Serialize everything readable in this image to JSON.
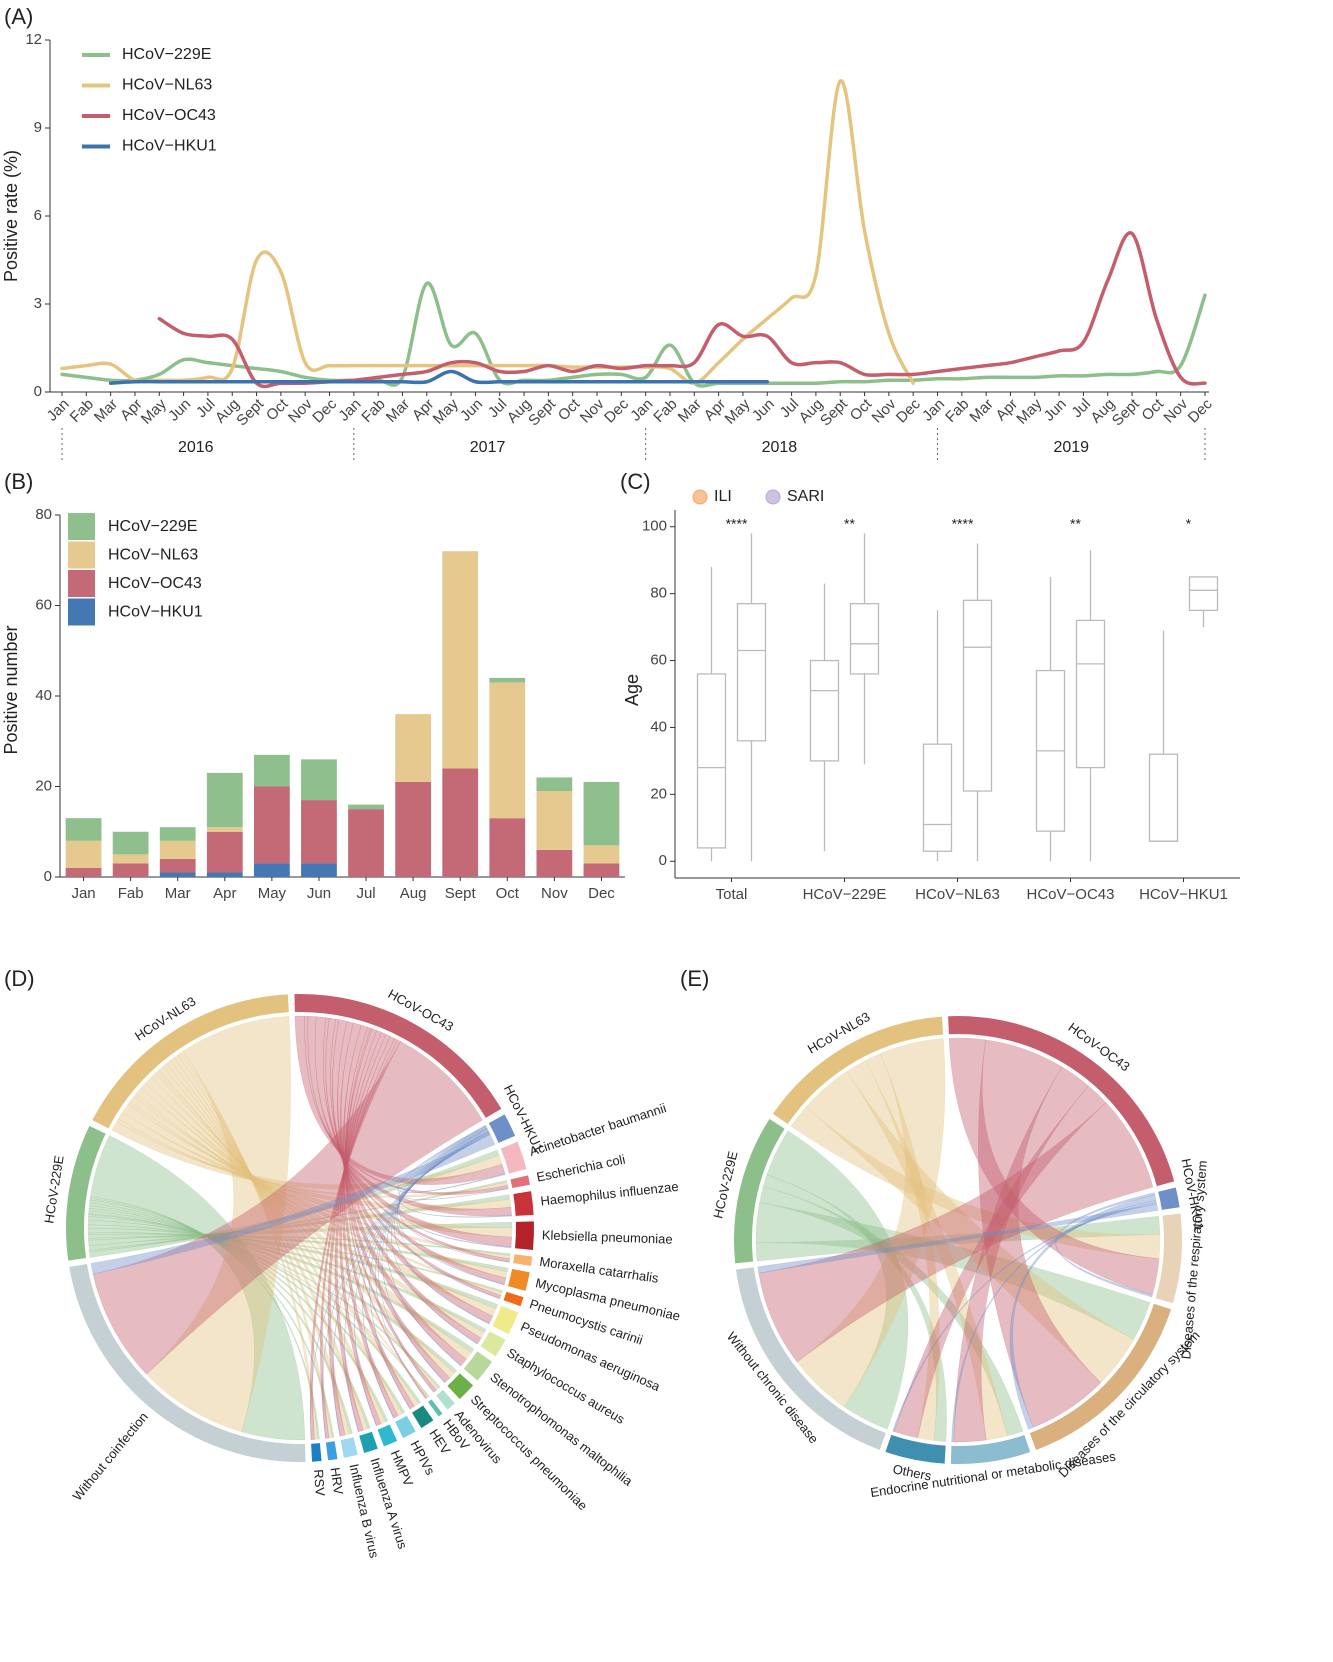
{
  "chart_data": [
    {
      "type": "line",
      "panel_label": "(A)",
      "ylabel": "Positive rate (%)",
      "categories": [
        "Jan",
        "Fab",
        "Mar",
        "Apr",
        "May",
        "Jun",
        "Jul",
        "Aug",
        "Sept",
        "Oct",
        "Nov",
        "Dec",
        "Jan",
        "Fab",
        "Mar",
        "Apr",
        "May",
        "Jun",
        "Jul",
        "Aug",
        "Sept",
        "Oct",
        "Nov",
        "Dec",
        "Jan",
        "Fab",
        "Mar",
        "Apr",
        "May",
        "Jun",
        "Jul",
        "Aug",
        "Sept",
        "Oct",
        "Nov",
        "Dec",
        "Jan",
        "Fab",
        "Mar",
        "Apr",
        "May",
        "Jun",
        "Jul",
        "Aug",
        "Sept",
        "Oct",
        "Nov",
        "Dec"
      ],
      "year_labels": [
        "2016",
        "2017",
        "2018",
        "2019"
      ],
      "ylim": [
        0,
        12
      ],
      "yticks": [
        0,
        3,
        6,
        9,
        12
      ],
      "series": [
        {
          "name": "HCoV−229E",
          "color": "#8dbf8b",
          "values": [
            0.6,
            0.5,
            0.4,
            0.4,
            0.6,
            1.1,
            1.0,
            0.9,
            0.8,
            0.7,
            0.5,
            0.4,
            0.4,
            0.4,
            0.5,
            3.7,
            1.6,
            2.0,
            0.4,
            0.4,
            0.4,
            0.5,
            0.6,
            0.6,
            0.5,
            1.6,
            0.3,
            0.3,
            0.3,
            0.3,
            0.3,
            0.3,
            0.35,
            0.35,
            0.4,
            0.4,
            0.45,
            0.45,
            0.5,
            0.5,
            0.5,
            0.55,
            0.55,
            0.6,
            0.6,
            0.7,
            0.9,
            3.3
          ]
        },
        {
          "name": "HCoV−NL63",
          "color": "#e5c47f",
          "values": [
            0.8,
            0.9,
            0.95,
            0.4,
            0.4,
            0.4,
            0.5,
            0.8,
            4.5,
            4.1,
            1.0,
            0.9,
            0.9,
            0.9,
            0.9,
            0.9,
            0.9,
            0.9,
            0.9,
            0.9,
            0.9,
            0.85,
            0.85,
            0.85,
            0.85,
            0.8,
            0.3,
            1.0,
            1.8,
            2.5,
            3.2,
            4.0,
            10.6,
            5.5,
            2.0,
            0.3,
            null,
            null,
            null,
            null,
            null,
            null,
            null,
            null,
            null,
            null,
            null,
            null
          ]
        },
        {
          "name": "HCoV−OC43",
          "color": "#c45d6c",
          "values": [
            null,
            null,
            null,
            null,
            2.5,
            2.0,
            1.9,
            1.8,
            0.3,
            0.3,
            0.3,
            0.35,
            0.4,
            0.5,
            0.6,
            0.7,
            1.0,
            1.0,
            0.7,
            0.7,
            0.9,
            0.7,
            0.9,
            0.8,
            0.9,
            0.9,
            1.0,
            2.3,
            1.9,
            1.9,
            1.0,
            1.0,
            1.0,
            0.6,
            0.6,
            0.6,
            0.7,
            0.8,
            0.9,
            1.0,
            1.2,
            1.4,
            1.7,
            3.8,
            5.4,
            2.5,
            0.5,
            0.3
          ]
        },
        {
          "name": "HCoV−HKU1",
          "color": "#3b72b0",
          "values": [
            null,
            null,
            0.3,
            0.35,
            0.35,
            0.35,
            0.35,
            0.35,
            0.35,
            0.35,
            0.35,
            0.35,
            0.35,
            0.35,
            0.35,
            0.35,
            0.7,
            0.35,
            0.35,
            0.35,
            0.35,
            0.35,
            0.35,
            0.35,
            0.35,
            0.35,
            0.35,
            0.35,
            0.35,
            0.35,
            null,
            null,
            null,
            null,
            null,
            null,
            null,
            null,
            null,
            null,
            null,
            null,
            null,
            null,
            null,
            null,
            null,
            null
          ]
        }
      ]
    },
    {
      "type": "stacked_bar",
      "panel_label": "(B)",
      "ylabel": "Positive number",
      "categories": [
        "Jan",
        "Fab",
        "Mar",
        "Apr",
        "May",
        "Jun",
        "Jul",
        "Aug",
        "Sept",
        "Oct",
        "Nov",
        "Dec"
      ],
      "ylim": [
        0,
        80
      ],
      "yticks": [
        0,
        20,
        40,
        60,
        80
      ],
      "series": [
        {
          "name": "HCoV−229E",
          "color": "#8fbf8d",
          "values": [
            5,
            5,
            3,
            12,
            7,
            9,
            1,
            0,
            0,
            1,
            3,
            14
          ]
        },
        {
          "name": "HCoV−NL63",
          "color": "#e5c98e",
          "values": [
            6,
            2,
            4,
            1,
            0,
            0,
            0,
            15,
            48,
            30,
            13,
            4
          ]
        },
        {
          "name": "HCoV−OC43",
          "color": "#c46a76",
          "values": [
            2,
            3,
            3,
            9,
            17,
            14,
            15,
            21,
            24,
            13,
            6,
            3
          ]
        },
        {
          "name": "HCoV−HKU1",
          "color": "#4478b4",
          "values": [
            0,
            0,
            1,
            1,
            3,
            3,
            0,
            0,
            0,
            0,
            0,
            0
          ]
        }
      ]
    },
    {
      "type": "box",
      "panel_label": "(C)",
      "ylabel": "Age",
      "categories": [
        "Total",
        "HCoV−229E",
        "HCoV−NL63",
        "HCoV−OC43",
        "HCoV−HKU1"
      ],
      "annotations": [
        "****",
        "**",
        "****",
        "**",
        "*"
      ],
      "ylim": [
        -5,
        105
      ],
      "yticks": [
        0,
        20,
        40,
        60,
        80,
        100
      ],
      "series": [
        {
          "name": "ILI",
          "color": "#f5a866",
          "boxes": [
            {
              "low": 0,
              "q1": 4,
              "median": 28,
              "q3": 56,
              "high": 88
            },
            {
              "low": 3,
              "q1": 30,
              "median": 51,
              "q3": 60,
              "high": 83
            },
            {
              "low": 0,
              "q1": 3,
              "median": 11,
              "q3": 35,
              "high": 75
            },
            {
              "low": 0,
              "q1": 9,
              "median": 33,
              "q3": 57,
              "high": 85
            },
            {
              "low": 6,
              "q1": 6,
              "median": 6,
              "q3": 32,
              "high": 69
            }
          ]
        },
        {
          "name": "SARI",
          "color": "#b9a6d6",
          "boxes": [
            {
              "low": 0,
              "q1": 36,
              "median": 63,
              "q3": 77,
              "high": 98
            },
            {
              "low": 29,
              "q1": 56,
              "median": 65,
              "q3": 77,
              "high": 98
            },
            {
              "low": 0,
              "q1": 21,
              "median": 64,
              "q3": 78,
              "high": 95
            },
            {
              "low": 0,
              "q1": 28,
              "median": 59,
              "q3": 72,
              "high": 93
            },
            {
              "low": 70,
              "q1": 75,
              "median": 81,
              "q3": 85,
              "high": 85
            }
          ]
        }
      ]
    },
    {
      "type": "chord",
      "panel_label": "(D)",
      "target_labels": "radial",
      "sources": [
        {
          "name": "HCoV-229E",
          "color": "#8dbf8b",
          "value": 29
        },
        {
          "name": "HCoV-NL63",
          "color": "#e2c27e",
          "value": 51
        },
        {
          "name": "HCoV-OC43",
          "color": "#c45d6c",
          "value": 52
        },
        {
          "name": "HCoV-HKU1",
          "color": "#6f8fc8",
          "value": 5
        }
      ],
      "targets": [
        {
          "name": "Acinetobacter baumannii",
          "color": "#f5b8c0",
          "value": 6
        },
        {
          "name": "Escherichia coli",
          "color": "#e0707a",
          "value": 2
        },
        {
          "name": "Haemophilus influenzae",
          "color": "#c83238",
          "value": 5
        },
        {
          "name": "Klebsiella pneumoniae",
          "color": "#b22228",
          "value": 6
        },
        {
          "name": "Moraxella catarrhalis",
          "color": "#f7b36b",
          "value": 2
        },
        {
          "name": "Mycoplasma pneumoniae",
          "color": "#f08a24",
          "value": 4
        },
        {
          "name": "Pneumocystis carinii",
          "color": "#f06a1a",
          "value": 2
        },
        {
          "name": "Pseudomonas aeruginosa",
          "color": "#f0ea8a",
          "value": 5
        },
        {
          "name": "Staphylococcus aureus",
          "color": "#dbe8a0",
          "value": 4
        },
        {
          "name": "Stenotrophomonas maltophilia",
          "color": "#b8d89a",
          "value": 5
        },
        {
          "name": "Streptococcus pneumoniae",
          "color": "#6db04a",
          "value": 4
        },
        {
          "name": "Adenovirus",
          "color": "#b0e0d0",
          "value": 2
        },
        {
          "name": "HBoV",
          "color": "#60c0b0",
          "value": 1
        },
        {
          "name": "HEV",
          "color": "#1a8a80",
          "value": 3
        },
        {
          "name": "HPIVs",
          "color": "#7ad0e0",
          "value": 3
        },
        {
          "name": "HMPV",
          "color": "#30b8d0",
          "value": 3
        },
        {
          "name": "Influenza A virus",
          "color": "#1aa0b0",
          "value": 3
        },
        {
          "name": "Influenza B virus",
          "color": "#a0d8f0",
          "value": 3
        },
        {
          "name": "HRV",
          "color": "#3aa0e0",
          "value": 2
        },
        {
          "name": "RSV",
          "color": "#1a80c0",
          "value": 2
        },
        {
          "name": "Without coinfection",
          "color": "#c5d0d5",
          "value": 70
        }
      ]
    },
    {
      "type": "chord",
      "panel_label": "(E)",
      "target_labels": "tangential",
      "sources": [
        {
          "name": "HCoV-229E",
          "color": "#8dbf8b",
          "value": 30
        },
        {
          "name": "HCoV-NL63",
          "color": "#e2c27e",
          "value": 40
        },
        {
          "name": "HCoV-OC43",
          "color": "#c45d6c",
          "value": 60
        },
        {
          "name": "HCoV-HKU1",
          "color": "#6f8fc8",
          "value": 4
        }
      ],
      "targets": [
        {
          "name": "Diseases of the respiratory system",
          "color": "#e8d3b8",
          "value": 18
        },
        {
          "name": "Diseases of the circulatory system",
          "color": "#d9b07e",
          "value": 40
        },
        {
          "name": "Endocrine nutritional or metabolic diseases",
          "color": "#8cbcd0",
          "value": 16
        },
        {
          "name": "Others",
          "color": "#3f8fb0",
          "value": 12
        },
        {
          "name": "Without chronic disease",
          "color": "#c5d0d5",
          "value": 48
        }
      ]
    }
  ]
}
